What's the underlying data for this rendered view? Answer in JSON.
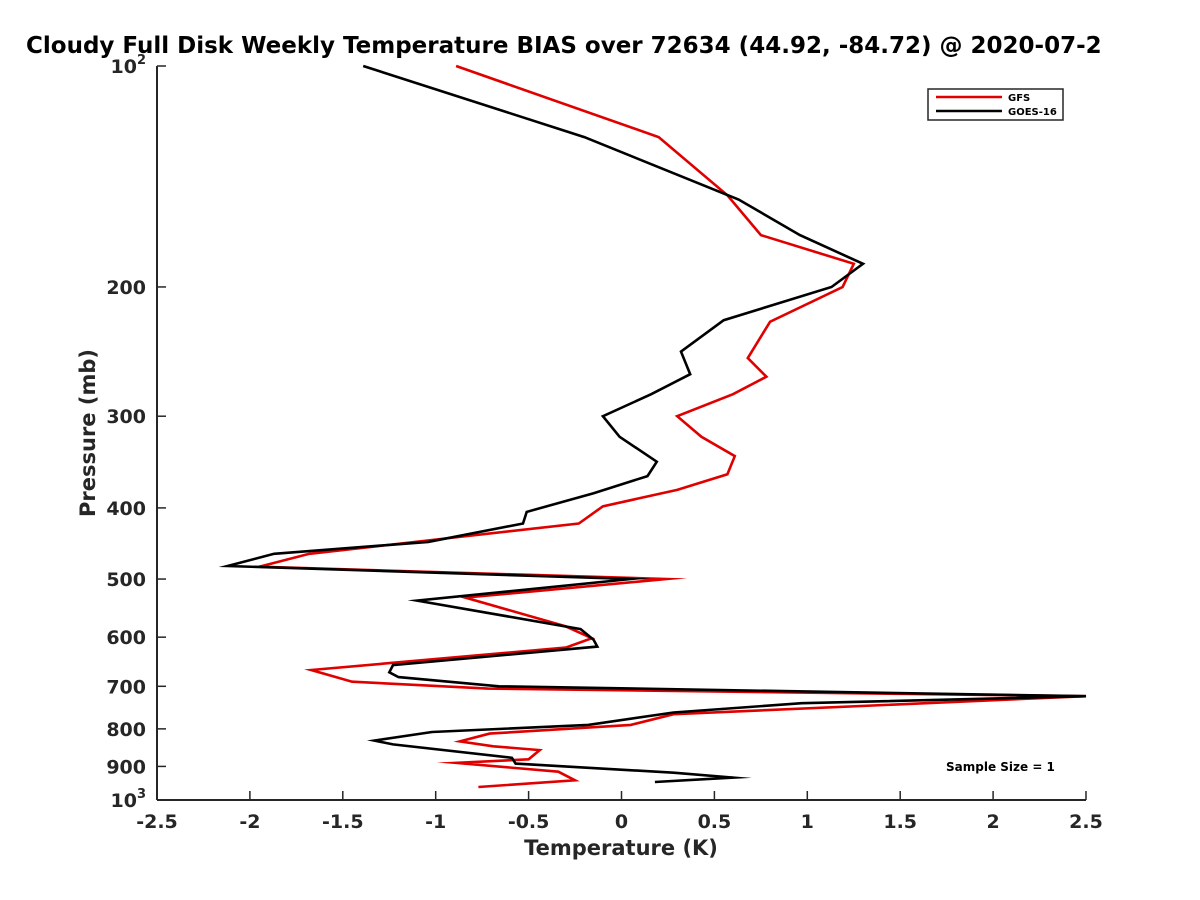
{
  "chart_data": {
    "type": "line",
    "title": "Cloudy Full Disk Weekly Temperature BIAS over 72634 (44.92, -84.72) @ 2020-07-2",
    "xlabel": "Temperature (K)",
    "ylabel": "Pressure (mb)",
    "xlim": [
      -2.5,
      2.5
    ],
    "ylim": [
      100,
      1000
    ],
    "yscale": "log",
    "y_reversed": true,
    "x_ticks": [
      "-2.5",
      "-2",
      "-1.5",
      "-1",
      "-0.5",
      "0",
      "0.5",
      "1",
      "1.5",
      "2",
      "2.5"
    ],
    "y_ticks": [
      {
        "value": 100,
        "base": "10",
        "exp": "2",
        "text": ""
      },
      {
        "value": 200,
        "base": "",
        "exp": "",
        "text": "200"
      },
      {
        "value": 300,
        "base": "",
        "exp": "",
        "text": "300"
      },
      {
        "value": 400,
        "base": "",
        "exp": "",
        "text": "400"
      },
      {
        "value": 500,
        "base": "",
        "exp": "",
        "text": "500"
      },
      {
        "value": 600,
        "base": "",
        "exp": "",
        "text": "600"
      },
      {
        "value": 700,
        "base": "",
        "exp": "",
        "text": "700"
      },
      {
        "value": 800,
        "base": "",
        "exp": "",
        "text": "800"
      },
      {
        "value": 900,
        "base": "",
        "exp": "",
        "text": "900"
      },
      {
        "value": 1000,
        "base": "10",
        "exp": "3",
        "text": ""
      }
    ],
    "grid": false,
    "legend_position": "top-right",
    "annotation": "Sample Size = 1",
    "series": [
      {
        "name": "GFS",
        "color": "#e00000",
        "points": [
          [
            -0.89,
            100
          ],
          [
            0.2,
            125
          ],
          [
            0.57,
            150
          ],
          [
            0.75,
            170
          ],
          [
            1.25,
            186
          ],
          [
            1.19,
            200
          ],
          [
            0.8,
            223
          ],
          [
            0.68,
            250
          ],
          [
            0.78,
            265
          ],
          [
            0.6,
            280
          ],
          [
            0.3,
            300
          ],
          [
            0.43,
            320
          ],
          [
            0.61,
            340
          ],
          [
            0.57,
            360
          ],
          [
            0.3,
            378
          ],
          [
            -0.1,
            398
          ],
          [
            -0.23,
            420
          ],
          [
            -1.68,
            462
          ],
          [
            -1.95,
            481
          ],
          [
            0.24,
            500
          ],
          [
            -0.84,
            530
          ],
          [
            -0.3,
            580
          ],
          [
            -0.16,
            602
          ],
          [
            -0.3,
            620
          ],
          [
            -1.67,
            665
          ],
          [
            -1.45,
            690
          ],
          [
            -0.72,
            705
          ],
          [
            2.5,
            722
          ],
          [
            0.28,
            764
          ],
          [
            0.05,
            790
          ],
          [
            -0.71,
            812
          ],
          [
            -0.87,
            832
          ],
          [
            -0.69,
            845
          ],
          [
            -0.44,
            855
          ],
          [
            -0.5,
            880
          ],
          [
            -0.89,
            890
          ],
          [
            -0.34,
            915
          ],
          [
            -0.25,
            940
          ],
          [
            -0.77,
            960
          ]
        ]
      },
      {
        "name": "GOES-16",
        "color": "#000000",
        "points": [
          [
            -1.39,
            100
          ],
          [
            -0.2,
            125
          ],
          [
            0.63,
            152
          ],
          [
            0.96,
            170
          ],
          [
            1.3,
            186
          ],
          [
            1.13,
            200
          ],
          [
            0.55,
            222
          ],
          [
            0.32,
            245
          ],
          [
            0.37,
            263
          ],
          [
            0.16,
            280
          ],
          [
            -0.1,
            300
          ],
          [
            -0.01,
            320
          ],
          [
            0.19,
            346
          ],
          [
            0.14,
            362
          ],
          [
            -0.15,
            382
          ],
          [
            -0.51,
            405
          ],
          [
            -0.53,
            420
          ],
          [
            -1.04,
            445
          ],
          [
            -1.87,
            462
          ],
          [
            -2.12,
            480
          ],
          [
            0.05,
            500
          ],
          [
            -1.1,
            535
          ],
          [
            -0.22,
            585
          ],
          [
            -0.15,
            605
          ],
          [
            -0.13,
            618
          ],
          [
            -1.23,
            655
          ],
          [
            -1.25,
            670
          ],
          [
            -1.2,
            680
          ],
          [
            -0.66,
            700
          ],
          [
            2.5,
            722
          ],
          [
            0.97,
            738
          ],
          [
            0.28,
            760
          ],
          [
            -0.18,
            790
          ],
          [
            -1.02,
            808
          ],
          [
            -1.33,
            830
          ],
          [
            -1.23,
            840
          ],
          [
            -0.59,
            876
          ],
          [
            -0.57,
            892
          ],
          [
            0.28,
            918
          ],
          [
            0.6,
            932
          ],
          [
            0.18,
            945
          ]
        ]
      }
    ]
  }
}
